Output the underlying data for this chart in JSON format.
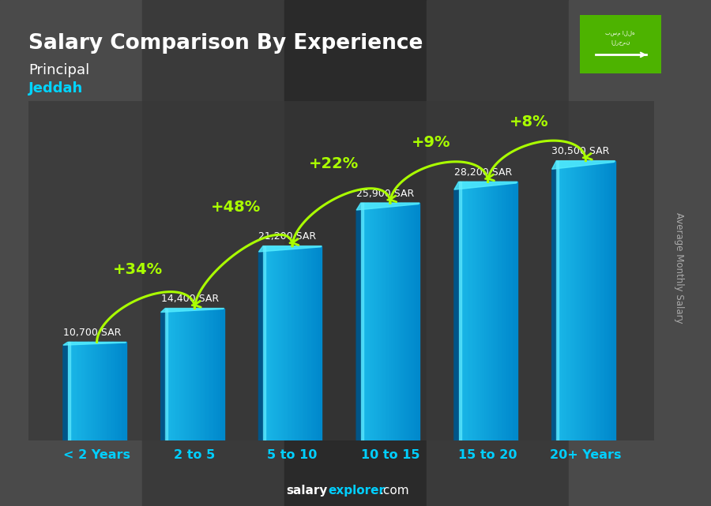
{
  "title": "Salary Comparison By Experience",
  "subtitle1": "Principal",
  "subtitle2": "Jeddah",
  "categories": [
    "< 2 Years",
    "2 to 5",
    "5 to 10",
    "10 to 15",
    "15 to 20",
    "20+ Years"
  ],
  "values": [
    10700,
    14400,
    21200,
    25900,
    28200,
    30500
  ],
  "value_labels": [
    "10,700 SAR",
    "14,400 SAR",
    "21,200 SAR",
    "25,900 SAR",
    "28,200 SAR",
    "30,500 SAR"
  ],
  "pct_labels": [
    "+34%",
    "+48%",
    "+22%",
    "+9%",
    "+8%"
  ],
  "bar_color_main": "#1ab8e8",
  "bar_color_light": "#55ddff",
  "bar_color_dark": "#0077aa",
  "bar_color_edge_left": "#005588",
  "bar_color_edge_right": "#003366",
  "bg_color": "#3a3a3a",
  "title_color": "#ffffff",
  "subtitle1_color": "#ffffff",
  "subtitle2_color": "#00d4ff",
  "label_color": "#ffffff",
  "pct_color": "#aaff00",
  "xtick_color": "#00cfff",
  "footer_color_salary": "#ffffff",
  "footer_color_explorer": "#00cfff",
  "footer_color_com": "#ffffff",
  "ylabel_text": "Average Monthly Salary",
  "ylabel_color": "#aaaaaa",
  "ylim_max": 37000,
  "bar_width": 0.6,
  "flag_color": "#4db300"
}
